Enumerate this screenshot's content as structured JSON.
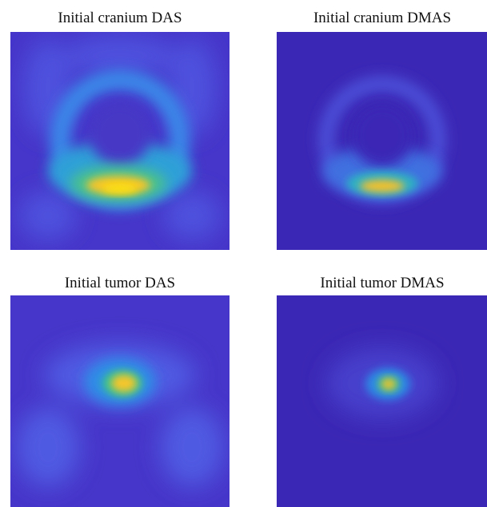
{
  "panels": [
    {
      "title": "Initial cranium DAS"
    },
    {
      "title": "Initial cranium DMAS"
    },
    {
      "title": "Initial tumor DAS"
    },
    {
      "title": "Initial tumor DMAS"
    }
  ]
}
